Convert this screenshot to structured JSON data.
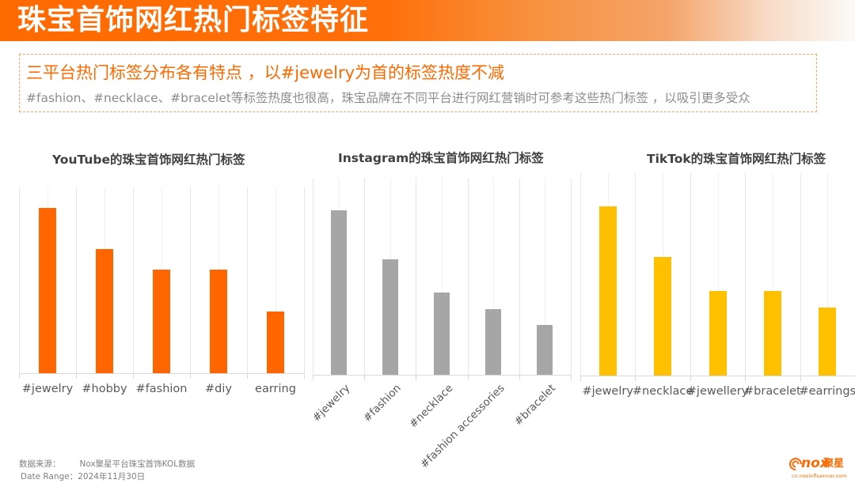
{
  "header": {
    "title": "珠宝首饰网红热门标签特征"
  },
  "summary": {
    "headline": "三平台热门标签分布各有特点 ，以#jewelry为首的标签热度不减",
    "detail": "#fashion、#necklace、#bracelet等标签热度也很高，珠宝品牌在不同平台进行网红营销时可参考这些热门标签 ，以吸引更多受众"
  },
  "colors": {
    "accent": "#ff6a00",
    "youtube_bar": "#ff6600",
    "instagram_bar": "#a6a6a6",
    "tiktok_bar": "#ffc000"
  },
  "chart_data": [
    {
      "type": "bar",
      "title": "YouTube的珠宝首饰网红热门标签",
      "categories": [
        "#jewelry",
        "#hobby",
        "#fashion",
        "#diy",
        "earring"
      ],
      "values": [
        209,
        157,
        131,
        131,
        78
      ],
      "value_note": "relative bar heights (no axis values shown)",
      "color": "#ff6600",
      "xlabel": "",
      "ylabel": "",
      "grid": true,
      "legend": null
    },
    {
      "type": "bar",
      "title": "Instagram的珠宝首饰网红热门标签",
      "categories": [
        "#jewelry",
        "#fashion",
        "#necklace",
        "#fashion accessories",
        "#bracelet"
      ],
      "values": [
        208,
        146,
        104,
        83,
        63
      ],
      "value_note": "relative bar heights (no axis values shown)",
      "color": "#a6a6a6",
      "xlabel": "",
      "ylabel": "",
      "grid": true,
      "legend": null
    },
    {
      "type": "bar",
      "title": "TikTok的珠宝首饰网红热门标签",
      "categories": [
        "#jewelry",
        "#necklace",
        "#jewellery",
        "#bracelet",
        "#earrings"
      ],
      "values": [
        214,
        150,
        107,
        107,
        86
      ],
      "value_note": "relative bar heights (no axis values shown)",
      "color": "#ffc000",
      "xlabel": "",
      "ylabel": "",
      "grid": true,
      "legend": null
    }
  ],
  "footer": {
    "source_label": "数据来源：",
    "source_value": "Nox聚星平台珠宝首饰KOL数据",
    "date_label": "Date Range：",
    "date_value": "2024年11月30日"
  },
  "logo": {
    "wordmark": "nox",
    "cn_name": "聚星",
    "url": "cn.noxinfluencer.com"
  }
}
